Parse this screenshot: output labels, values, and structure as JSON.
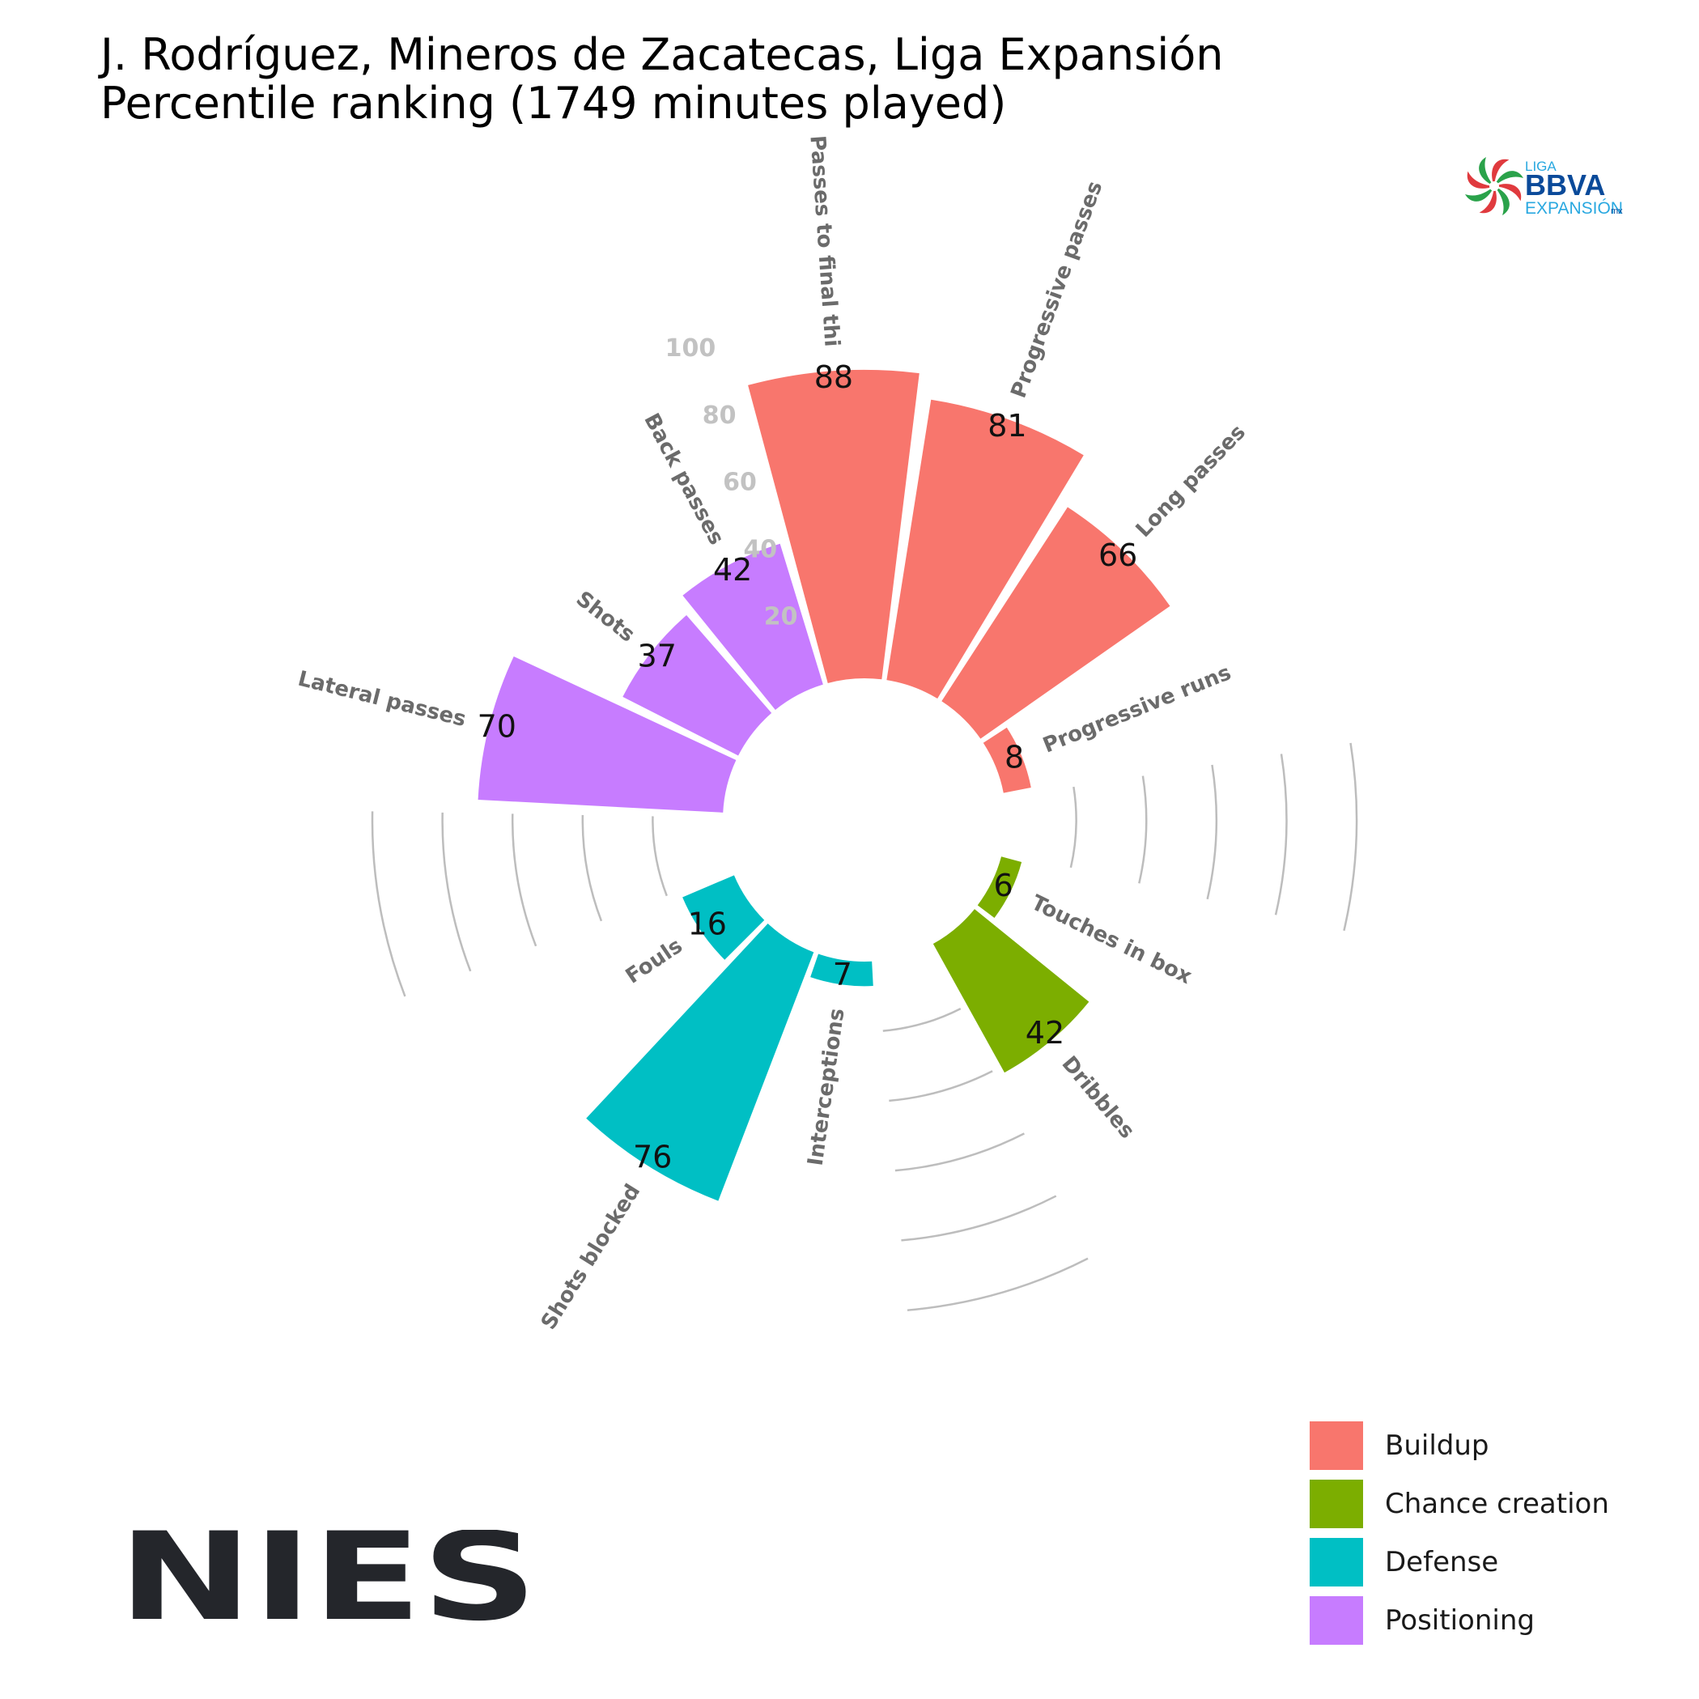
{
  "title": {
    "line1": "J. Rodríguez, Mineros de Zacatecas, Liga Expansión",
    "line2": "Percentile ranking (1749 minutes played)"
  },
  "chart_data": {
    "type": "polar-bar",
    "scale": {
      "min": 0,
      "max": 100,
      "ticks": [
        20,
        40,
        60,
        80,
        100
      ]
    },
    "grid": false,
    "legend_position": "bottom-right",
    "groups": [
      {
        "name": "Buildup",
        "color": "#F8766D"
      },
      {
        "name": "Chance creation",
        "color": "#7CAE00"
      },
      {
        "name": "Defense",
        "color": "#00BFC4"
      },
      {
        "name": "Positioning",
        "color": "#C77CFF"
      }
    ],
    "metrics": [
      {
        "label": "Passes to final thi",
        "value": 88,
        "group": "Buildup"
      },
      {
        "label": "Progressive passes",
        "value": 81,
        "group": "Buildup"
      },
      {
        "label": "Long passes",
        "value": 66,
        "group": "Buildup"
      },
      {
        "label": "Progressive runs",
        "value": 8,
        "group": "Buildup"
      },
      {
        "label": "",
        "value": null,
        "group": null
      },
      {
        "label": "Touches in box",
        "value": 6,
        "group": "Chance creation"
      },
      {
        "label": "Dribbles",
        "value": 42,
        "group": "Chance creation"
      },
      {
        "label": "",
        "value": null,
        "group": null
      },
      {
        "label": "Interceptions",
        "value": 7,
        "group": "Defense"
      },
      {
        "label": "Shots blocked",
        "value": 76,
        "group": "Defense"
      },
      {
        "label": "Fouls",
        "value": 16,
        "group": "Defense"
      },
      {
        "label": "",
        "value": null,
        "group": null
      },
      {
        "label": "Lateral passes",
        "value": 70,
        "group": "Positioning"
      },
      {
        "label": "Shots",
        "value": 37,
        "group": "Positioning"
      },
      {
        "label": "Back passes",
        "value": 42,
        "group": "Positioning"
      }
    ]
  },
  "league_logo": {
    "line1": "LIGA",
    "line2": "BBVA",
    "line3": "EXPANSIÓN",
    "suffix": "mx"
  },
  "brand_logo": {
    "text": "NIES"
  }
}
